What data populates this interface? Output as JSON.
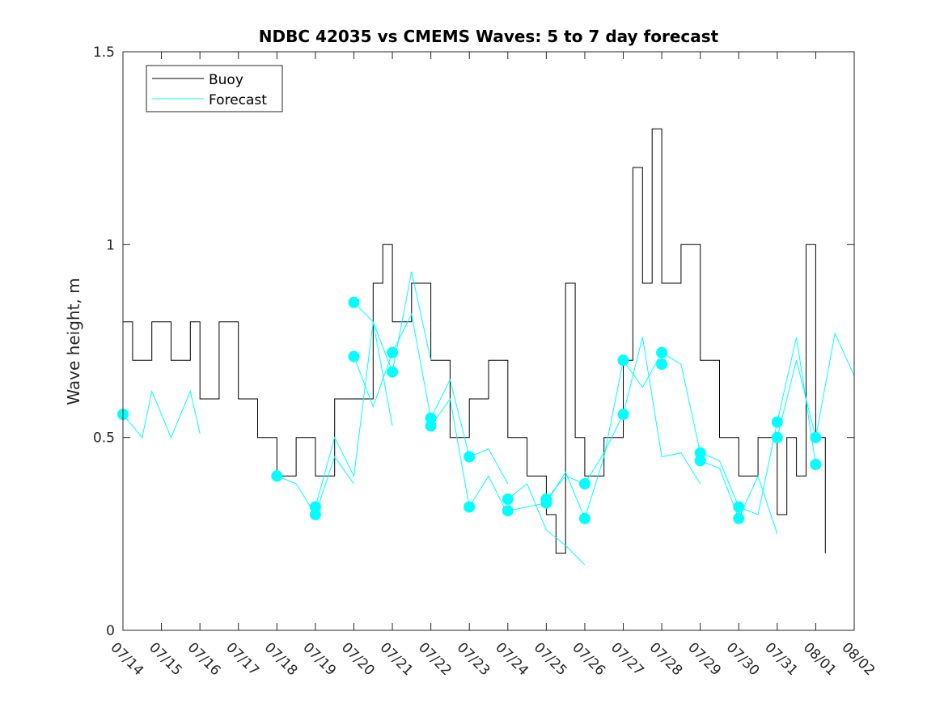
{
  "chart_data": {
    "type": "line",
    "title": "NDBC 42035 vs CMEMS Waves: 5 to 7 day forecast",
    "xlabel": "",
    "ylabel": "Wave height, m",
    "x_unit": "date (MM/DD)",
    "xlim": [
      "07/14",
      "08/02"
    ],
    "ylim": [
      0,
      1.5
    ],
    "x_ticks": [
      "07/14",
      "07/15",
      "07/16",
      "07/17",
      "07/18",
      "07/19",
      "07/20",
      "07/21",
      "07/22",
      "07/23",
      "07/24",
      "07/25",
      "07/26",
      "07/27",
      "07/28",
      "07/29",
      "07/30",
      "07/31",
      "08/01",
      "08/02"
    ],
    "y_ticks": [
      "0",
      "0.5",
      "1",
      "1.5"
    ],
    "grid": false,
    "legend": {
      "position": "top-left",
      "entries": [
        "Buoy",
        "Forecast"
      ]
    },
    "colors": {
      "buoy": "#000000",
      "forecast": "#00ffff"
    },
    "series": [
      {
        "name": "Buoy",
        "x": [
          "07/14",
          "07/14 06:00",
          "07/14 18:00",
          "07/15 06:00",
          "07/15 18:00",
          "07/16",
          "07/16 12:00",
          "07/17",
          "07/17 12:00",
          "07/18",
          "07/18 12:00",
          "07/19",
          "07/19 12:00",
          "07/20",
          "07/20 12:00",
          "07/20 18:00",
          "07/21",
          "07/21 12:00",
          "07/22",
          "07/22 12:00",
          "07/23",
          "07/23 12:00",
          "07/24",
          "07/24 12:00",
          "07/25",
          "07/25 06:00",
          "07/25 12:00",
          "07/25 18:00",
          "07/26",
          "07/26 12:00",
          "07/27",
          "07/27 06:00",
          "07/27 12:00",
          "07/27 18:00",
          "07/28",
          "07/28 12:00",
          "07/29",
          "07/29 12:00",
          "07/30",
          "07/30 12:00",
          "07/31",
          "07/31 06:00",
          "07/31 12:00",
          "07/31 18:00",
          "08/01",
          "08/01 06:00",
          "08/01 06:00"
        ],
        "y": [
          0.8,
          0.7,
          0.8,
          0.7,
          0.8,
          0.6,
          0.8,
          0.6,
          0.5,
          0.4,
          0.5,
          0.4,
          0.6,
          0.6,
          0.9,
          1.0,
          0.8,
          0.9,
          0.7,
          0.5,
          0.6,
          0.7,
          0.5,
          0.4,
          0.3,
          0.2,
          0.9,
          0.5,
          0.4,
          0.5,
          0.7,
          1.2,
          0.9,
          1.3,
          0.9,
          1.0,
          0.7,
          0.5,
          0.4,
          0.5,
          0.3,
          0.5,
          0.4,
          1.0,
          0.5,
          0.3,
          0.2
        ]
      },
      {
        "name": "Forecast",
        "runs": [
          {
            "x": [
              "07/14",
              "07/14 12:00",
              "07/14 18:00",
              "07/15 06:00",
              "07/15 18:00",
              "07/16"
            ],
            "y": [
              0.56,
              0.5,
              0.62,
              0.5,
              0.62,
              0.51
            ]
          },
          {
            "x": [
              "07/18",
              "07/18 12:00",
              "07/19",
              "07/19 12:00",
              "07/20"
            ],
            "y": [
              0.4,
              0.38,
              0.3,
              0.45,
              0.38
            ]
          },
          {
            "x": [
              "07/19",
              "07/19 12:00",
              "07/20",
              "07/20 12:00",
              "07/21"
            ],
            "y": [
              0.32,
              0.5,
              0.4,
              0.8,
              0.53
            ]
          },
          {
            "x": [
              "07/20",
              "07/20 12:00",
              "07/21",
              "07/21 12:00",
              "07/22"
            ],
            "y": [
              0.85,
              0.8,
              0.67,
              0.93,
              0.7
            ]
          },
          {
            "x": [
              "07/20",
              "07/20 12:00",
              "07/21",
              "07/21 12:00",
              "07/22"
            ],
            "y": [
              0.71,
              0.58,
              0.72,
              0.82,
              0.55
            ]
          },
          {
            "x": [
              "07/22",
              "07/22 12:00",
              "07/23",
              "07/23 12:00",
              "07/24"
            ],
            "y": [
              0.55,
              0.65,
              0.45,
              0.47,
              0.38
            ]
          },
          {
            "x": [
              "07/22",
              "07/22 12:00",
              "07/23",
              "07/23 12:00",
              "07/24"
            ],
            "y": [
              0.53,
              0.6,
              0.32,
              0.4,
              0.3
            ]
          },
          {
            "x": [
              "07/24",
              "07/24 12:00",
              "07/25",
              "07/25 12:00",
              "07/26"
            ],
            "y": [
              0.34,
              0.38,
              0.26,
              0.22,
              0.17
            ]
          },
          {
            "x": [
              "07/24",
              "07/24 12:00",
              "07/25",
              "07/25 12:00",
              "07/26"
            ],
            "y": [
              0.31,
              0.32,
              0.33,
              0.41,
              0.29
            ]
          },
          {
            "x": [
              "07/25",
              "07/25 12:00",
              "07/26",
              "07/26 12:00",
              "07/27"
            ],
            "y": [
              0.34,
              0.4,
              0.38,
              0.46,
              0.56
            ]
          },
          {
            "x": [
              "07/26",
              "07/26 12:00",
              "07/27",
              "07/27 12:00",
              "07/28"
            ],
            "y": [
              0.29,
              0.45,
              0.7,
              0.63,
              0.72
            ]
          },
          {
            "x": [
              "07/27",
              "07/27 12:00",
              "07/28",
              "07/28 12:00",
              "07/29"
            ],
            "y": [
              0.56,
              0.76,
              0.45,
              0.46,
              0.38
            ]
          },
          {
            "x": [
              "07/28",
              "07/28 12:00",
              "07/29",
              "07/29 12:00",
              "07/30"
            ],
            "y": [
              0.72,
              0.69,
              0.46,
              0.44,
              0.32
            ]
          },
          {
            "x": [
              "07/29",
              "07/29 12:00",
              "07/30",
              "07/30 12:00",
              "07/31"
            ],
            "y": [
              0.44,
              0.42,
              0.29,
              0.4,
              0.25
            ]
          },
          {
            "x": [
              "07/30",
              "07/30 12:00",
              "07/31",
              "07/31 12:00",
              "08/01"
            ],
            "y": [
              0.32,
              0.3,
              0.54,
              0.76,
              0.43
            ]
          },
          {
            "x": [
              "07/31",
              "07/31 12:00",
              "08/01",
              "08/01 12:00",
              "08/02"
            ],
            "y": [
              0.5,
              0.7,
              0.5,
              0.77,
              0.66
            ]
          }
        ],
        "markers": {
          "x": [
            "07/14",
            "07/18",
            "07/19",
            "07/19",
            "07/20",
            "07/20",
            "07/21",
            "07/21",
            "07/22",
            "07/22",
            "07/23",
            "07/23",
            "07/24",
            "07/24",
            "07/25",
            "07/25",
            "07/26",
            "07/26",
            "07/27",
            "07/27",
            "07/28",
            "07/28",
            "07/29",
            "07/29",
            "07/30",
            "07/30",
            "07/31",
            "07/31",
            "08/01",
            "08/01"
          ],
          "y": [
            0.56,
            0.4,
            0.32,
            0.3,
            0.85,
            0.71,
            0.72,
            0.67,
            0.55,
            0.53,
            0.45,
            0.32,
            0.34,
            0.31,
            0.34,
            0.33,
            0.38,
            0.29,
            0.7,
            0.56,
            0.72,
            0.69,
            0.46,
            0.44,
            0.32,
            0.29,
            0.54,
            0.5,
            0.5,
            0.43
          ]
        }
      }
    ]
  }
}
